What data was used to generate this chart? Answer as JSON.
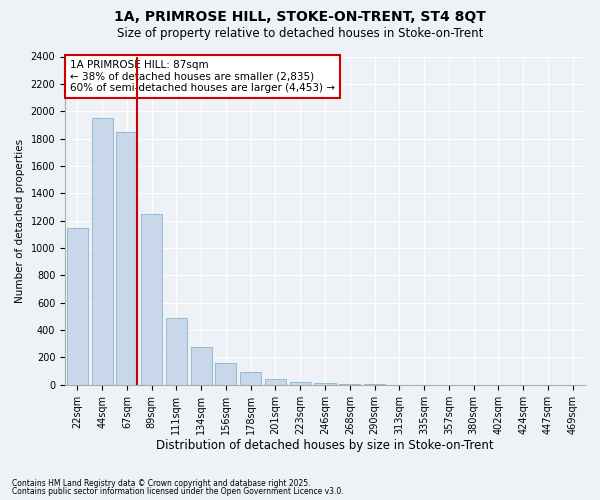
{
  "title": "1A, PRIMROSE HILL, STOKE-ON-TRENT, ST4 8QT",
  "subtitle": "Size of property relative to detached houses in Stoke-on-Trent",
  "xlabel": "Distribution of detached houses by size in Stoke-on-Trent",
  "ylabel": "Number of detached properties",
  "annotation_line1": "1A PRIMROSE HILL: 87sqm",
  "annotation_line2": "← 38% of detached houses are smaller (2,835)",
  "annotation_line3": "60% of semi-detached houses are larger (4,453) →",
  "bar_color": "#c8d8ea",
  "bar_edge_color": "#8ab4cc",
  "marker_color": "#cc0000",
  "categories": [
    "22sqm",
    "44sqm",
    "67sqm",
    "89sqm",
    "111sqm",
    "134sqm",
    "156sqm",
    "178sqm",
    "201sqm",
    "223sqm",
    "246sqm",
    "268sqm",
    "290sqm",
    "313sqm",
    "335sqm",
    "357sqm",
    "380sqm",
    "402sqm",
    "424sqm",
    "447sqm",
    "469sqm"
  ],
  "values": [
    1150,
    1950,
    1850,
    1250,
    490,
    280,
    160,
    95,
    45,
    20,
    12,
    8,
    4,
    2,
    1,
    0,
    0,
    0,
    0,
    0,
    0
  ],
  "ylim": [
    0,
    2400
  ],
  "yticks": [
    0,
    200,
    400,
    600,
    800,
    1000,
    1200,
    1400,
    1600,
    1800,
    2000,
    2200,
    2400
  ],
  "footnote1": "Contains HM Land Registry data © Crown copyright and database right 2025.",
  "footnote2": "Contains public sector information licensed under the Open Government Licence v3.0.",
  "bg_color": "#eef2f7",
  "plot_bg_color": "#eef2f7",
  "marker_bin_index": 2,
  "title_fontsize": 10,
  "subtitle_fontsize": 8.5,
  "xlabel_fontsize": 8.5,
  "ylabel_fontsize": 7.5,
  "annotation_fontsize": 7.5,
  "tick_fontsize": 7,
  "footnote_fontsize": 5.5
}
